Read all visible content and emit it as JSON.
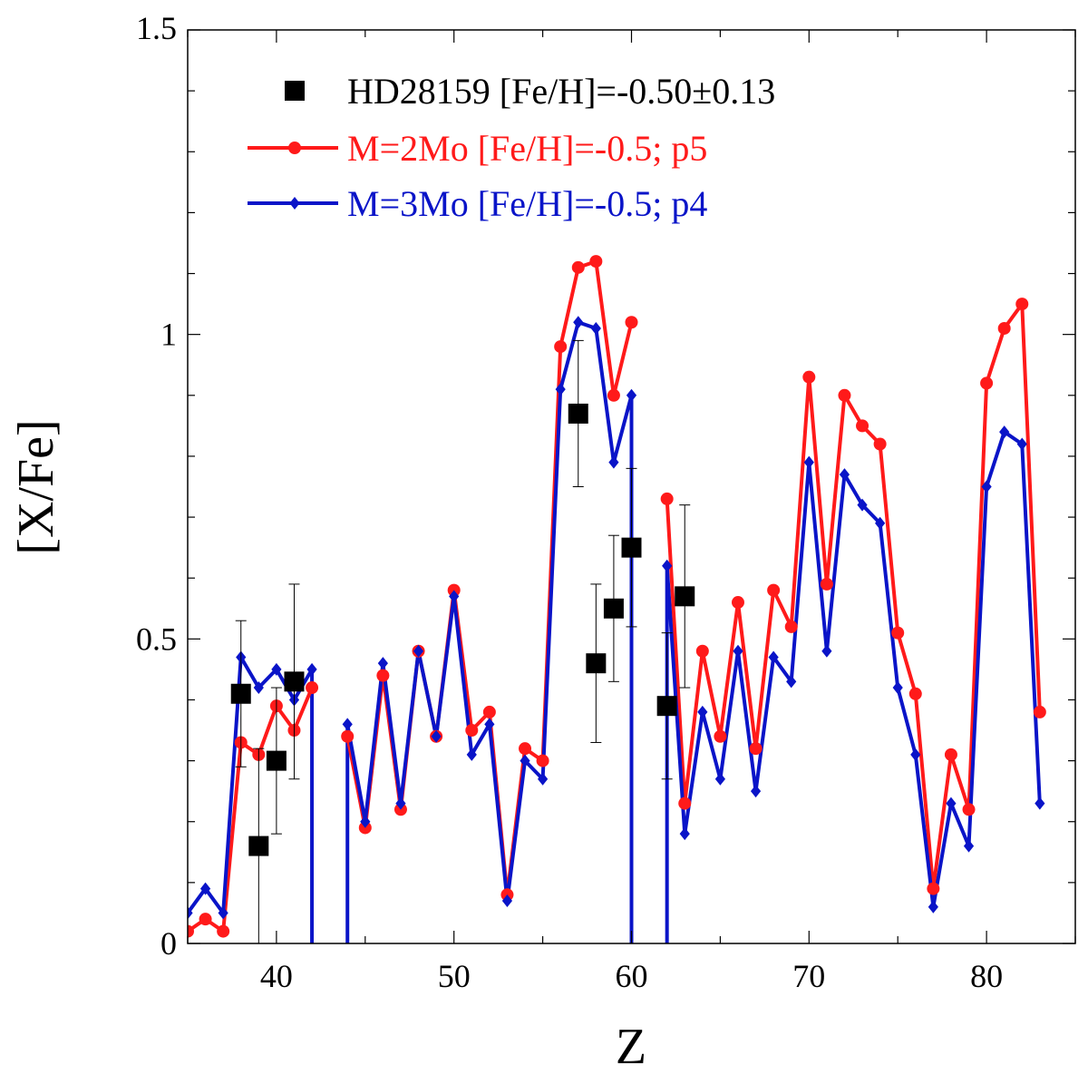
{
  "chart_data": {
    "type": "line",
    "title": "",
    "xlabel": "Z",
    "ylabel": "[X/Fe]",
    "xlim": [
      35,
      85
    ],
    "ylim": [
      0,
      1.5
    ],
    "xticks": [
      40,
      50,
      60,
      70,
      80
    ],
    "xtick_labels": [
      "40",
      "50",
      "60",
      "70",
      "80"
    ],
    "yticks": [
      0,
      0.5,
      1,
      1.5
    ],
    "ytick_labels": [
      "0",
      "0.5",
      "1",
      "1.5"
    ],
    "grid": false,
    "legend_position": "top-left",
    "observations": {
      "name": "HD28159 [Fe/H]=-0.50±0.13",
      "color": "#000000",
      "marker": "square",
      "points": [
        {
          "x": 38,
          "y": 0.41,
          "err": 0.12
        },
        {
          "x": 39,
          "y": 0.16,
          "err": 0.16
        },
        {
          "x": 40,
          "y": 0.3,
          "err": 0.12
        },
        {
          "x": 41,
          "y": 0.43,
          "err": 0.16
        },
        {
          "x": 57,
          "y": 0.87,
          "err": 0.12
        },
        {
          "x": 58,
          "y": 0.46,
          "err": 0.13
        },
        {
          "x": 59,
          "y": 0.55,
          "err": 0.12
        },
        {
          "x": 60,
          "y": 0.65,
          "err": 0.13
        },
        {
          "x": 62,
          "y": 0.39,
          "err": 0.12
        },
        {
          "x": 63,
          "y": 0.57,
          "err": 0.15
        }
      ]
    },
    "series": [
      {
        "name": "M=2Mo [Fe/H]=-0.5; p5",
        "color": "#ff1a1a",
        "marker": "circle",
        "segments": [
          {
            "x": [
              35,
              36,
              37,
              38,
              39,
              40,
              41,
              42
            ],
            "y": [
              0.02,
              0.04,
              0.02,
              0.33,
              0.31,
              0.39,
              0.35,
              0.42
            ]
          },
          {
            "x": [
              44,
              45,
              46,
              47,
              48,
              49,
              50,
              51,
              52,
              53,
              54,
              55,
              56,
              57,
              58,
              59,
              60
            ],
            "y": [
              0.34,
              0.19,
              0.44,
              0.22,
              0.48,
              0.34,
              0.58,
              0.35,
              0.38,
              0.08,
              0.32,
              0.3,
              0.98,
              1.11,
              1.12,
              0.9,
              1.02
            ]
          },
          {
            "x": [
              62,
              63,
              64,
              65,
              66,
              67,
              68,
              69,
              70,
              71,
              72,
              73,
              74,
              75,
              76,
              77,
              78,
              79,
              80,
              81,
              82,
              83
            ],
            "y": [
              0.73,
              0.23,
              0.48,
              0.34,
              0.56,
              0.32,
              0.58,
              0.52,
              0.93,
              0.59,
              0.9,
              0.85,
              0.82,
              0.51,
              0.41,
              0.09,
              0.31,
              0.22,
              0.92,
              1.01,
              1.05,
              0.38
            ]
          }
        ]
      },
      {
        "name": "M=3Mo [Fe/H]=-0.5; p4",
        "color": "#0a14c8",
        "marker": "diamond",
        "segments": [
          {
            "x": [
              35,
              36,
              37,
              38,
              39,
              40,
              41,
              42
            ],
            "y": [
              0.05,
              0.09,
              0.05,
              0.47,
              0.42,
              0.45,
              0.4,
              0.45
            ]
          },
          {
            "x": [
              44,
              45,
              46,
              47,
              48,
              49,
              50,
              51,
              52,
              53,
              54,
              55,
              56,
              57,
              58,
              59,
              60
            ],
            "y": [
              0.36,
              0.2,
              0.46,
              0.23,
              0.48,
              0.34,
              0.57,
              0.31,
              0.36,
              0.07,
              0.3,
              0.27,
              0.91,
              1.02,
              1.01,
              0.79,
              0.9
            ]
          },
          {
            "x": [
              62,
              63,
              64,
              65,
              66,
              67,
              68,
              69,
              70,
              71,
              72,
              73,
              74,
              75,
              76,
              77,
              78,
              79,
              80,
              81,
              82,
              83
            ],
            "y": [
              0.62,
              0.18,
              0.38,
              0.27,
              0.48,
              0.25,
              0.47,
              0.43,
              0.79,
              0.48,
              0.77,
              0.72,
              0.69,
              0.42,
              0.31,
              0.06,
              0.23,
              0.16,
              0.75,
              0.84,
              0.82,
              0.23
            ]
          }
        ]
      }
    ],
    "gap_drops": [
      {
        "series": 1,
        "x": [
          42,
          42
        ],
        "y": [
          0.45,
          -0.1
        ]
      },
      {
        "series": 1,
        "x": [
          44,
          44
        ],
        "y": [
          0.36,
          -0.1
        ]
      },
      {
        "series": 1,
        "x": [
          60,
          60
        ],
        "y": [
          0.9,
          -0.1
        ]
      },
      {
        "series": 1,
        "x": [
          62,
          62
        ],
        "y": [
          0.62,
          -0.1
        ]
      }
    ]
  }
}
